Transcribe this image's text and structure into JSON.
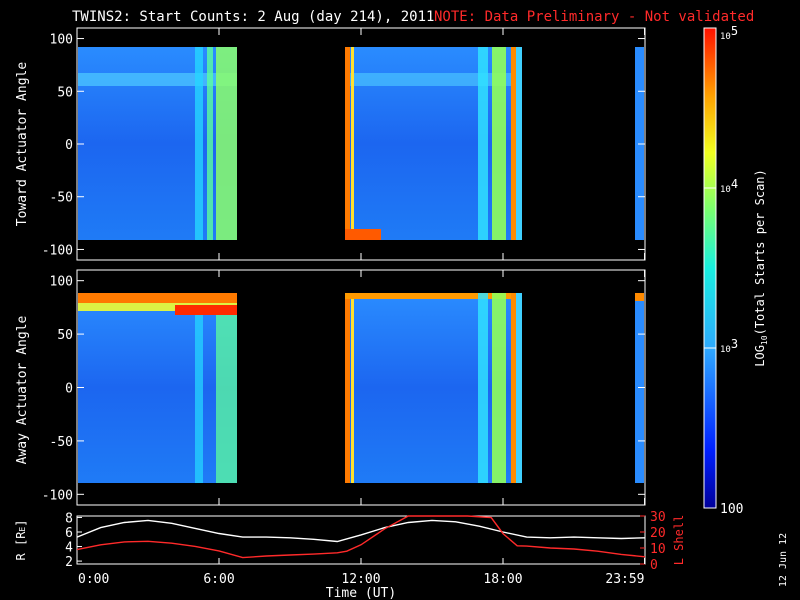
{
  "header": {
    "title": "TWINS2: Start Counts:  2 Aug (day 214), 2011",
    "note": "NOTE: Data Preliminary - Not validated",
    "note_color": "#ff2a2a"
  },
  "side_stamp": "12 Jun 12",
  "chart_data": [
    {
      "type": "heatmap",
      "name": "toward-panel",
      "ylabel": "Toward Actuator Angle",
      "ylim": [
        -110,
        110
      ],
      "yticks": [
        "100",
        "50",
        "0",
        "-50",
        "-100"
      ],
      "ytick_values": [
        100,
        50,
        0,
        -50,
        -100
      ],
      "data_yrange": [
        -88,
        88
      ],
      "data_blocks_hours": [
        [
          0.0,
          6.8
        ],
        [
          11.4,
          18.8
        ],
        [
          23.8,
          24.0
        ]
      ],
      "colormap": "log counts"
    },
    {
      "type": "heatmap",
      "name": "away-panel",
      "ylabel": "Away Actuator Angle",
      "ylim": [
        -110,
        110
      ],
      "yticks": [
        "100",
        "50",
        "0",
        "-50",
        "-100"
      ],
      "ytick_values": [
        100,
        50,
        0,
        -50,
        -100
      ],
      "data_yrange": [
        -88,
        88
      ],
      "data_blocks_hours": [
        [
          0.0,
          6.8
        ],
        [
          11.4,
          18.8
        ],
        [
          23.8,
          24.0
        ]
      ],
      "colormap": "log counts"
    },
    {
      "type": "line",
      "name": "orbit-panel",
      "ylabel_left": "R [R",
      "ylabel_left_sub": "E",
      "ylabel_left_tail": "]",
      "ylim_left": [
        1.6,
        8.2
      ],
      "yticks_left": [
        "8",
        "6",
        "4",
        "2"
      ],
      "ytick_left_values": [
        8,
        6,
        4,
        2
      ],
      "ylabel_right": "L Shell",
      "ylim_right": [
        0,
        30
      ],
      "yticks_right": [
        "30",
        "20",
        "10",
        "0"
      ],
      "ytick_right_values": [
        30,
        20,
        10,
        0
      ],
      "right_axis_color": "#ff2a2a",
      "xlabel": "Time (UT)",
      "xlim": [
        0,
        24
      ],
      "xticks": [
        "0:00",
        "6:00",
        "12:00",
        "18:00",
        "23:59"
      ],
      "xtick_values": [
        0,
        6,
        12,
        18,
        23.98
      ],
      "series": [
        {
          "color": "#ffffff",
          "x": [
            0,
            1,
            2,
            3,
            4,
            5,
            6,
            7,
            8,
            9,
            10,
            11,
            12,
            13,
            14,
            15,
            16,
            17,
            18,
            19,
            20,
            21,
            22,
            23,
            24
          ],
          "values": [
            5.3,
            6.6,
            7.3,
            7.6,
            7.2,
            6.5,
            5.8,
            5.3,
            5.3,
            5.2,
            5.0,
            4.7,
            5.6,
            6.6,
            7.3,
            7.6,
            7.4,
            6.8,
            6.0,
            5.3,
            5.2,
            5.3,
            5.2,
            5.1,
            5.2
          ]
        },
        {
          "color": "#ff2a2a",
          "axis": "right",
          "x": [
            0,
            1,
            2,
            3,
            4,
            5,
            6,
            7,
            8,
            9,
            10,
            11,
            11.4,
            12,
            13,
            14,
            15,
            16,
            16.5,
            17.5,
            18,
            18.6,
            19,
            20,
            21,
            22,
            23,
            24
          ],
          "values": [
            9,
            12,
            13.8,
            14.2,
            13,
            11,
            8.2,
            4,
            5,
            5.6,
            6.2,
            7,
            8,
            12,
            22,
            30,
            31,
            31,
            30,
            29,
            19,
            11.4,
            11.2,
            10,
            9.4,
            8,
            6,
            4.5
          ]
        }
      ]
    }
  ],
  "colorbar": {
    "label": "LOG",
    "label_sub": "10",
    "label_tail": "(Total Starts per Scan)",
    "tick_values": [
      100,
      1000,
      10000,
      100000
    ],
    "range": [
      100,
      100000
    ],
    "tick_labels": {
      "t100": "100",
      "t1000_base": "10",
      "t1000_exp": "3",
      "t10000_base": "10",
      "t10000_exp": "4",
      "t100000_base": "10",
      "t100000_exp": "5"
    }
  }
}
